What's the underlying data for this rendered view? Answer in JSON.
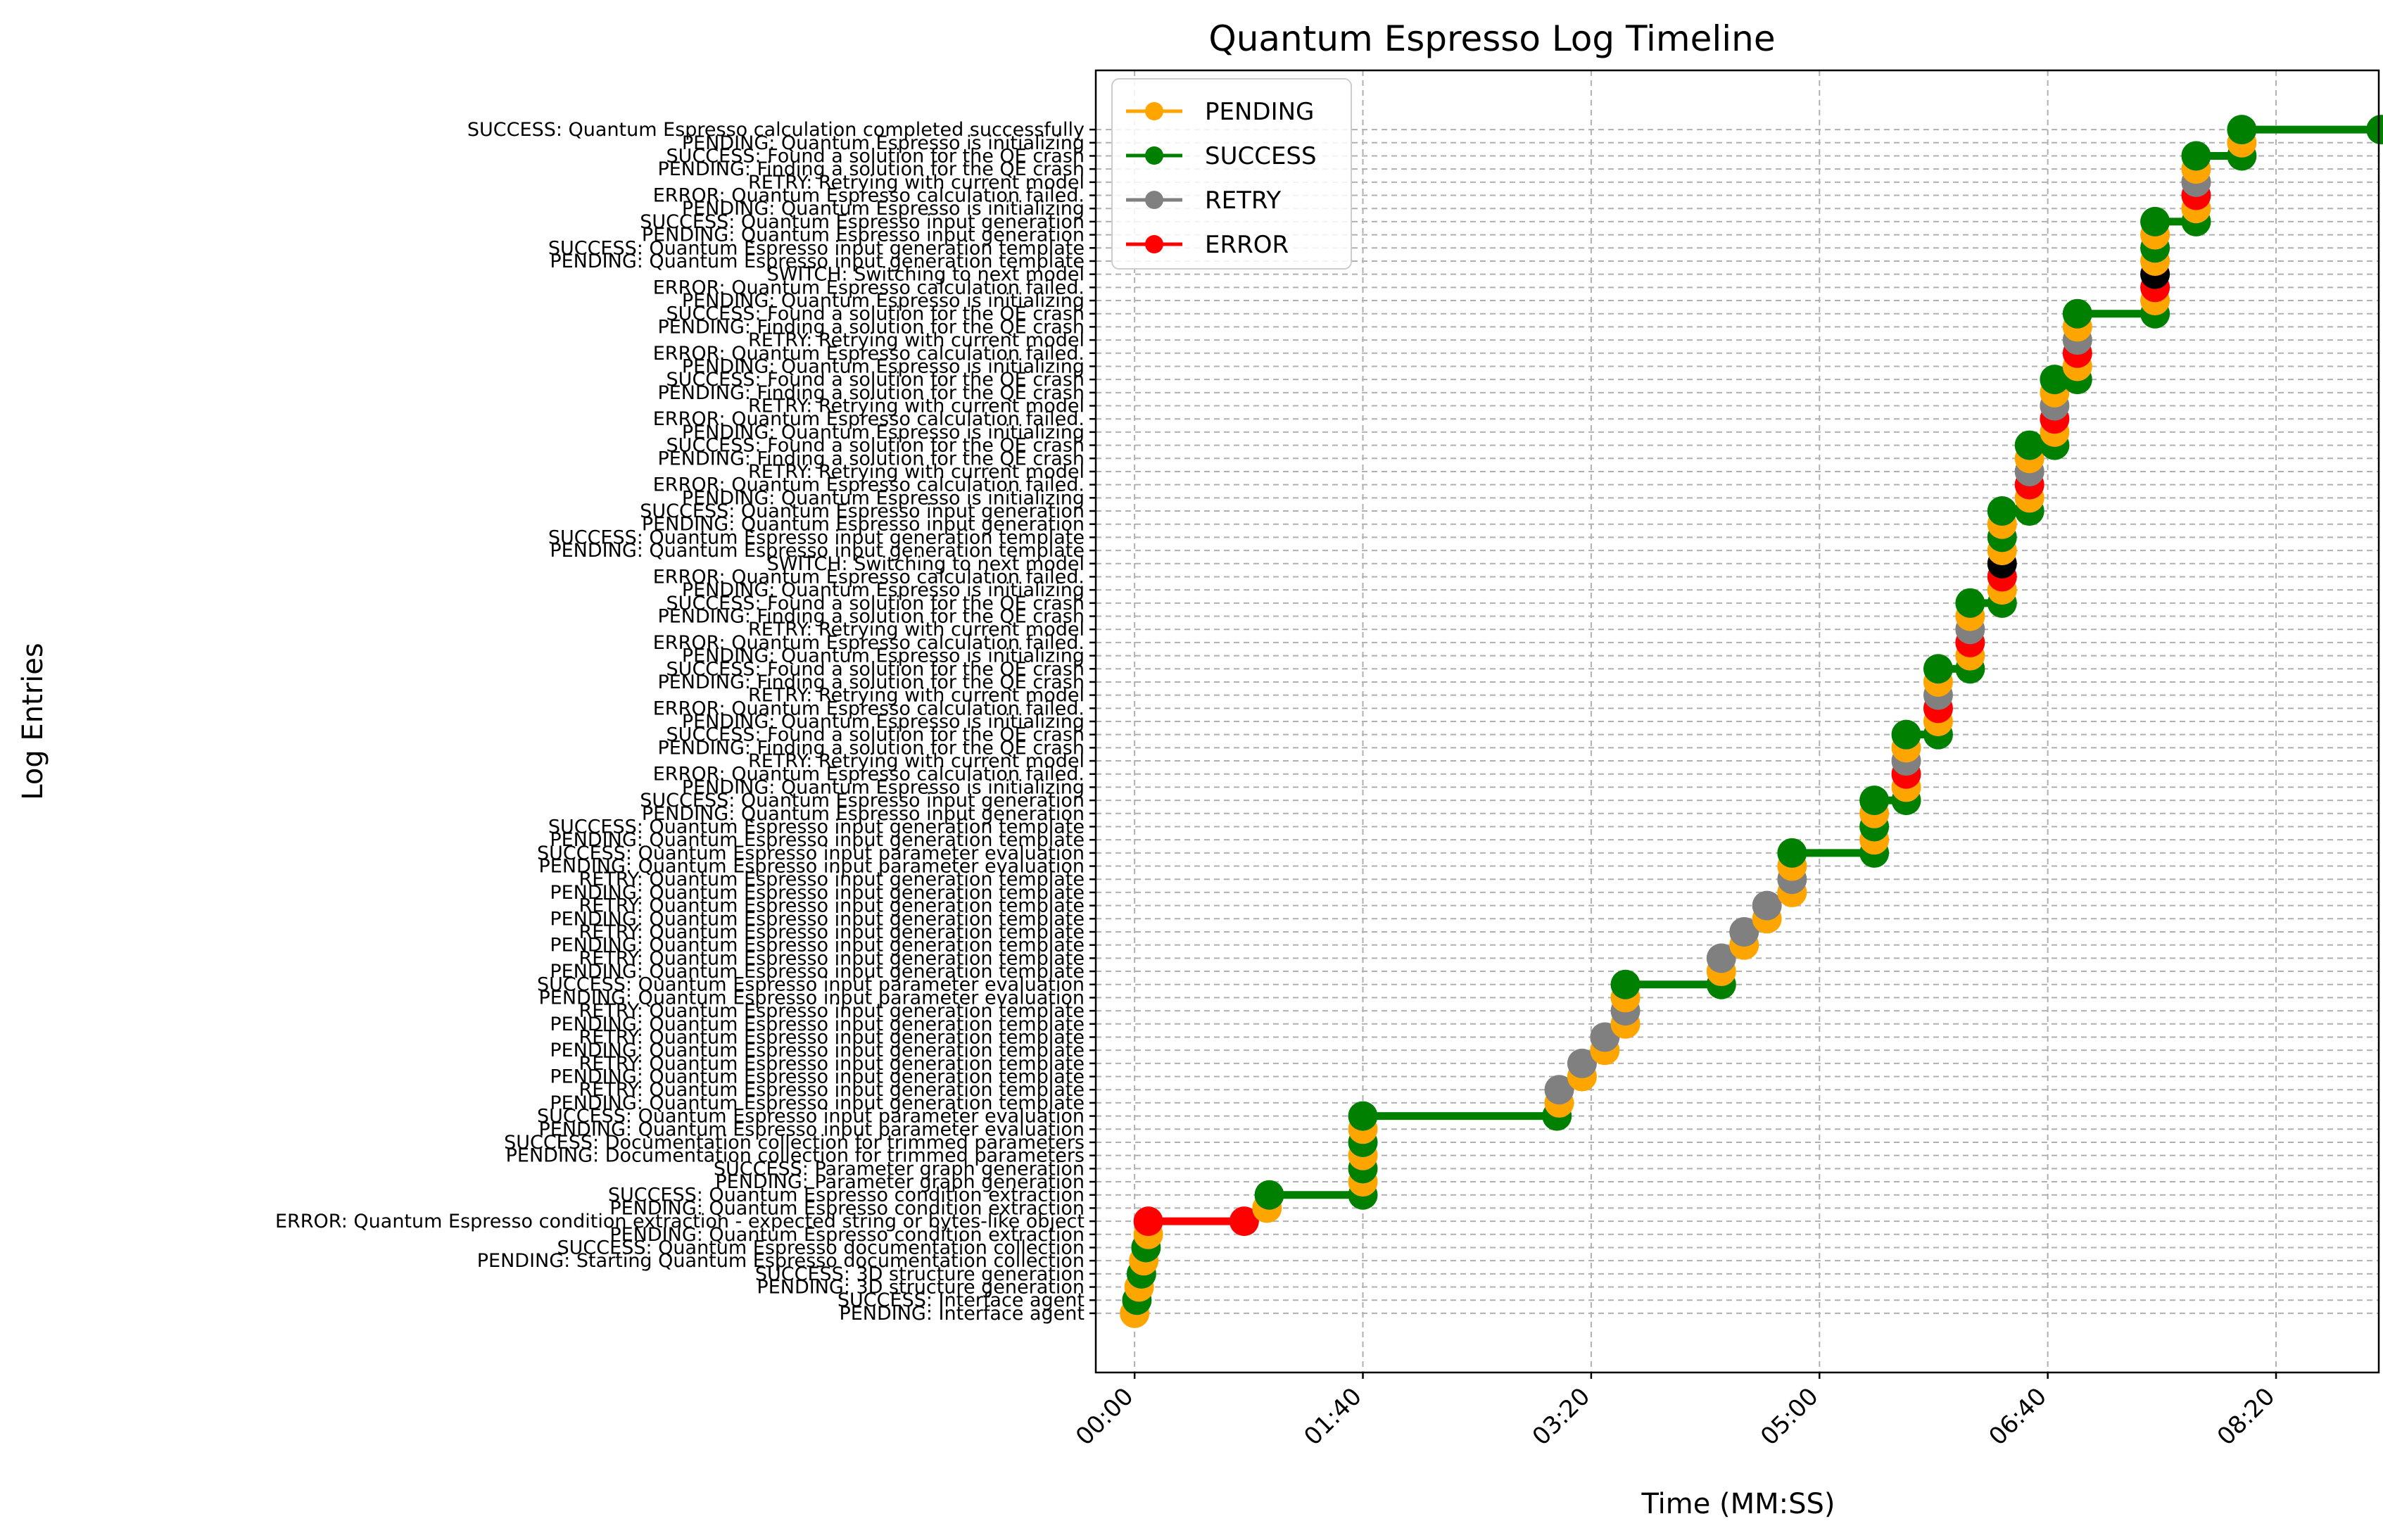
{
  "chart_data": {
    "type": "line",
    "title": "Quantum Espresso Log Timeline",
    "xlabel": "Time (MM:SS)",
    "ylabel": "Log Entries",
    "xlim": [
      -17,
      545
    ],
    "ylim": [
      -4.5,
      94.5
    ],
    "x_ticks": [
      {
        "value": 0,
        "label": "00:00"
      },
      {
        "value": 100,
        "label": "01:40"
      },
      {
        "value": 200,
        "label": "03:20"
      },
      {
        "value": 300,
        "label": "05:00"
      },
      {
        "value": 400,
        "label": "06:40"
      },
      {
        "value": 500,
        "label": "08:20"
      }
    ],
    "grid": true,
    "legend": {
      "location": "upper left",
      "entries": [
        {
          "label": "PENDING",
          "color": "#ffa500"
        },
        {
          "label": "SUCCESS",
          "color": "#008000"
        },
        {
          "label": "RETRY",
          "color": "#808080"
        },
        {
          "label": "ERROR",
          "color": "#ff0000"
        }
      ]
    },
    "status_colors": {
      "PENDING": "#ffa500",
      "SUCCESS": "#008000",
      "RETRY": "#808080",
      "ERROR": "#ff0000",
      "SWITCH": "#000000"
    },
    "x_unit": "seconds",
    "entries": [
      {
        "y": 0,
        "x": 0,
        "status": "PENDING",
        "label": "PENDING: Interface agent"
      },
      {
        "y": 1,
        "x": 1,
        "status": "SUCCESS",
        "label": "SUCCESS: Interface agent"
      },
      {
        "y": 2,
        "x": 2,
        "status": "PENDING",
        "label": "PENDING: 3D structure generation"
      },
      {
        "y": 3,
        "x": 3,
        "status": "SUCCESS",
        "label": "SUCCESS: 3D structure generation"
      },
      {
        "y": 4,
        "x": 4,
        "status": "PENDING",
        "label": "PENDING: Starting Quantum Espresso documentation collection"
      },
      {
        "y": 5,
        "x": 5,
        "status": "SUCCESS",
        "label": "SUCCESS: Quantum Espresso documentation collection"
      },
      {
        "y": 6,
        "x": 6,
        "status": "PENDING",
        "label": "PENDING: Quantum Espresso condition extraction"
      },
      {
        "y": 7,
        "x": 6,
        "status": "ERROR",
        "label": "ERROR: Quantum Espresso condition extraction - expected string or bytes-like object"
      },
      {
        "y": 7,
        "x": 48,
        "status": "ERROR",
        "label": "ERROR: Quantum Espresso condition extraction - expected string or bytes-like object"
      },
      {
        "y": 8,
        "x": 58,
        "status": "PENDING",
        "label": "PENDING: Quantum Espresso condition extraction"
      },
      {
        "y": 9,
        "x": 59,
        "status": "SUCCESS",
        "label": "SUCCESS: Quantum Espresso condition extraction"
      },
      {
        "y": 9,
        "x": 100,
        "status": "SUCCESS",
        "label": "SUCCESS: Quantum Espresso condition extraction"
      },
      {
        "y": 10,
        "x": 100,
        "status": "PENDING",
        "label": "PENDING: Parameter graph generation"
      },
      {
        "y": 11,
        "x": 100,
        "status": "SUCCESS",
        "label": "SUCCESS: Parameter graph generation"
      },
      {
        "y": 12,
        "x": 100,
        "status": "PENDING",
        "label": "PENDING: Documentation collection for trimmed parameters"
      },
      {
        "y": 13,
        "x": 100,
        "status": "SUCCESS",
        "label": "SUCCESS: Documentation collection for trimmed parameters"
      },
      {
        "y": 14,
        "x": 100,
        "status": "PENDING",
        "label": "PENDING: Quantum Espresso input parameter evaluation"
      },
      {
        "y": 15,
        "x": 100,
        "status": "SUCCESS",
        "label": "SUCCESS: Quantum Espresso input parameter evaluation"
      },
      {
        "y": 15,
        "x": 185,
        "status": "SUCCESS",
        "label": "SUCCESS: Quantum Espresso input parameter evaluation"
      },
      {
        "y": 16,
        "x": 186,
        "status": "PENDING",
        "label": "PENDING: Quantum Espresso input generation template"
      },
      {
        "y": 17,
        "x": 186,
        "status": "RETRY",
        "label": "RETRY: Quantum Espresso input generation template"
      },
      {
        "y": 18,
        "x": 196,
        "status": "PENDING",
        "label": "PENDING: Quantum Espresso input generation template"
      },
      {
        "y": 19,
        "x": 196,
        "status": "RETRY",
        "label": "RETRY: Quantum Espresso input generation template"
      },
      {
        "y": 20,
        "x": 206,
        "status": "PENDING",
        "label": "PENDING: Quantum Espresso input generation template"
      },
      {
        "y": 21,
        "x": 206,
        "status": "RETRY",
        "label": "RETRY: Quantum Espresso input generation template"
      },
      {
        "y": 22,
        "x": 215,
        "status": "PENDING",
        "label": "PENDING: Quantum Espresso input generation template"
      },
      {
        "y": 23,
        "x": 215,
        "status": "RETRY",
        "label": "RETRY: Quantum Espresso input generation template"
      },
      {
        "y": 24,
        "x": 215,
        "status": "PENDING",
        "label": "PENDING: Quantum Espresso input parameter evaluation"
      },
      {
        "y": 25,
        "x": 215,
        "status": "SUCCESS",
        "label": "SUCCESS: Quantum Espresso input parameter evaluation"
      },
      {
        "y": 25,
        "x": 257,
        "status": "SUCCESS",
        "label": "SUCCESS: Quantum Espresso input parameter evaluation"
      },
      {
        "y": 26,
        "x": 257,
        "status": "PENDING",
        "label": "PENDING: Quantum Espresso input generation template"
      },
      {
        "y": 27,
        "x": 257,
        "status": "RETRY",
        "label": "RETRY: Quantum Espresso input generation template"
      },
      {
        "y": 28,
        "x": 267,
        "status": "PENDING",
        "label": "PENDING: Quantum Espresso input generation template"
      },
      {
        "y": 29,
        "x": 267,
        "status": "RETRY",
        "label": "RETRY: Quantum Espresso input generation template"
      },
      {
        "y": 30,
        "x": 277,
        "status": "PENDING",
        "label": "PENDING: Quantum Espresso input generation template"
      },
      {
        "y": 31,
        "x": 277,
        "status": "RETRY",
        "label": "RETRY: Quantum Espresso input generation template"
      },
      {
        "y": 32,
        "x": 288,
        "status": "PENDING",
        "label": "PENDING: Quantum Espresso input generation template"
      },
      {
        "y": 33,
        "x": 288,
        "status": "RETRY",
        "label": "RETRY: Quantum Espresso input generation template"
      },
      {
        "y": 34,
        "x": 288,
        "status": "PENDING",
        "label": "PENDING: Quantum Espresso input parameter evaluation"
      },
      {
        "y": 35,
        "x": 288,
        "status": "SUCCESS",
        "label": "SUCCESS: Quantum Espresso input parameter evaluation"
      },
      {
        "y": 35,
        "x": 324,
        "status": "SUCCESS",
        "label": "SUCCESS: Quantum Espresso input parameter evaluation"
      },
      {
        "y": 36,
        "x": 324,
        "status": "PENDING",
        "label": "PENDING: Quantum Espresso input generation template"
      },
      {
        "y": 37,
        "x": 324,
        "status": "SUCCESS",
        "label": "SUCCESS: Quantum Espresso input generation template"
      },
      {
        "y": 38,
        "x": 324,
        "status": "PENDING",
        "label": "PENDING: Quantum Espresso input generation"
      },
      {
        "y": 39,
        "x": 324,
        "status": "SUCCESS",
        "label": "SUCCESS: Quantum Espresso input generation"
      },
      {
        "y": 39,
        "x": 338,
        "status": "SUCCESS",
        "label": "SUCCESS: Quantum Espresso input generation"
      },
      {
        "y": 40,
        "x": 338,
        "status": "PENDING",
        "label": "PENDING: Quantum Espresso is initializing"
      },
      {
        "y": 41,
        "x": 338,
        "status": "ERROR",
        "label": "ERROR: Quantum Espresso calculation failed."
      },
      {
        "y": 42,
        "x": 338,
        "status": "RETRY",
        "label": "RETRY: Retrying with current model"
      },
      {
        "y": 43,
        "x": 338,
        "status": "PENDING",
        "label": "PENDING: Finding a solution for the QE crash"
      },
      {
        "y": 44,
        "x": 338,
        "status": "SUCCESS",
        "label": "SUCCESS: Found a solution for the QE crash"
      },
      {
        "y": 44,
        "x": 352,
        "status": "SUCCESS",
        "label": "SUCCESS: Found a solution for the QE crash"
      },
      {
        "y": 45,
        "x": 352,
        "status": "PENDING",
        "label": "PENDING: Quantum Espresso is initializing"
      },
      {
        "y": 46,
        "x": 352,
        "status": "ERROR",
        "label": "ERROR: Quantum Espresso calculation failed."
      },
      {
        "y": 47,
        "x": 352,
        "status": "RETRY",
        "label": "RETRY: Retrying with current model"
      },
      {
        "y": 48,
        "x": 352,
        "status": "PENDING",
        "label": "PENDING: Finding a solution for the QE crash"
      },
      {
        "y": 49,
        "x": 352,
        "status": "SUCCESS",
        "label": "SUCCESS: Found a solution for the QE crash"
      },
      {
        "y": 49,
        "x": 366,
        "status": "SUCCESS",
        "label": "SUCCESS: Found a solution for the QE crash"
      },
      {
        "y": 50,
        "x": 366,
        "status": "PENDING",
        "label": "PENDING: Quantum Espresso is initializing"
      },
      {
        "y": 51,
        "x": 366,
        "status": "ERROR",
        "label": "ERROR: Quantum Espresso calculation failed."
      },
      {
        "y": 52,
        "x": 366,
        "status": "RETRY",
        "label": "RETRY: Retrying with current model"
      },
      {
        "y": 53,
        "x": 366,
        "status": "PENDING",
        "label": "PENDING: Finding a solution for the QE crash"
      },
      {
        "y": 54,
        "x": 366,
        "status": "SUCCESS",
        "label": "SUCCESS: Found a solution for the QE crash"
      },
      {
        "y": 54,
        "x": 380,
        "status": "SUCCESS",
        "label": "SUCCESS: Found a solution for the QE crash"
      },
      {
        "y": 55,
        "x": 380,
        "status": "PENDING",
        "label": "PENDING: Quantum Espresso is initializing"
      },
      {
        "y": 56,
        "x": 380,
        "status": "ERROR",
        "label": "ERROR: Quantum Espresso calculation failed."
      },
      {
        "y": 57,
        "x": 380,
        "status": "SWITCH",
        "label": "SWITCH: Switching to next model"
      },
      {
        "y": 58,
        "x": 380,
        "status": "PENDING",
        "label": "PENDING: Quantum Espresso input generation template"
      },
      {
        "y": 59,
        "x": 380,
        "status": "SUCCESS",
        "label": "SUCCESS: Quantum Espresso input generation template"
      },
      {
        "y": 60,
        "x": 380,
        "status": "PENDING",
        "label": "PENDING: Quantum Espresso input generation"
      },
      {
        "y": 61,
        "x": 380,
        "status": "SUCCESS",
        "label": "SUCCESS: Quantum Espresso input generation"
      },
      {
        "y": 61,
        "x": 392,
        "status": "SUCCESS",
        "label": "SUCCESS: Quantum Espresso input generation"
      },
      {
        "y": 62,
        "x": 392,
        "status": "PENDING",
        "label": "PENDING: Quantum Espresso is initializing"
      },
      {
        "y": 63,
        "x": 392,
        "status": "ERROR",
        "label": "ERROR: Quantum Espresso calculation failed."
      },
      {
        "y": 64,
        "x": 392,
        "status": "RETRY",
        "label": "RETRY: Retrying with current model"
      },
      {
        "y": 65,
        "x": 392,
        "status": "PENDING",
        "label": "PENDING: Finding a solution for the QE crash"
      },
      {
        "y": 66,
        "x": 392,
        "status": "SUCCESS",
        "label": "SUCCESS: Found a solution for the QE crash"
      },
      {
        "y": 66,
        "x": 403,
        "status": "SUCCESS",
        "label": "SUCCESS: Found a solution for the QE crash"
      },
      {
        "y": 67,
        "x": 403,
        "status": "PENDING",
        "label": "PENDING: Quantum Espresso is initializing"
      },
      {
        "y": 68,
        "x": 403,
        "status": "ERROR",
        "label": "ERROR: Quantum Espresso calculation failed."
      },
      {
        "y": 69,
        "x": 403,
        "status": "RETRY",
        "label": "RETRY: Retrying with current model"
      },
      {
        "y": 70,
        "x": 403,
        "status": "PENDING",
        "label": "PENDING: Finding a solution for the QE crash"
      },
      {
        "y": 71,
        "x": 403,
        "status": "SUCCESS",
        "label": "SUCCESS: Found a solution for the QE crash"
      },
      {
        "y": 71,
        "x": 413,
        "status": "SUCCESS",
        "label": "SUCCESS: Found a solution for the QE crash"
      },
      {
        "y": 72,
        "x": 413,
        "status": "PENDING",
        "label": "PENDING: Quantum Espresso is initializing"
      },
      {
        "y": 73,
        "x": 413,
        "status": "ERROR",
        "label": "ERROR: Quantum Espresso calculation failed."
      },
      {
        "y": 74,
        "x": 413,
        "status": "RETRY",
        "label": "RETRY: Retrying with current model"
      },
      {
        "y": 75,
        "x": 413,
        "status": "PENDING",
        "label": "PENDING: Finding a solution for the QE crash"
      },
      {
        "y": 76,
        "x": 413,
        "status": "SUCCESS",
        "label": "SUCCESS: Found a solution for the QE crash"
      },
      {
        "y": 76,
        "x": 447,
        "status": "SUCCESS",
        "label": "SUCCESS: Found a solution for the QE crash"
      },
      {
        "y": 77,
        "x": 447,
        "status": "PENDING",
        "label": "PENDING: Quantum Espresso is initializing"
      },
      {
        "y": 78,
        "x": 447,
        "status": "ERROR",
        "label": "ERROR: Quantum Espresso calculation failed."
      },
      {
        "y": 79,
        "x": 447,
        "status": "SWITCH",
        "label": "SWITCH: Switching to next model"
      },
      {
        "y": 80,
        "x": 447,
        "status": "PENDING",
        "label": "PENDING: Quantum Espresso input generation template"
      },
      {
        "y": 81,
        "x": 447,
        "status": "SUCCESS",
        "label": "SUCCESS: Quantum Espresso input generation template"
      },
      {
        "y": 82,
        "x": 447,
        "status": "PENDING",
        "label": "PENDING: Quantum Espresso input generation"
      },
      {
        "y": 83,
        "x": 447,
        "status": "SUCCESS",
        "label": "SUCCESS: Quantum Espresso input generation"
      },
      {
        "y": 83,
        "x": 465,
        "status": "SUCCESS",
        "label": "SUCCESS: Quantum Espresso input generation"
      },
      {
        "y": 84,
        "x": 465,
        "status": "PENDING",
        "label": "PENDING: Quantum Espresso is initializing"
      },
      {
        "y": 85,
        "x": 465,
        "status": "ERROR",
        "label": "ERROR: Quantum Espresso calculation failed."
      },
      {
        "y": 86,
        "x": 465,
        "status": "RETRY",
        "label": "RETRY: Retrying with current model"
      },
      {
        "y": 87,
        "x": 465,
        "status": "PENDING",
        "label": "PENDING: Finding a solution for the QE crash"
      },
      {
        "y": 88,
        "x": 465,
        "status": "SUCCESS",
        "label": "SUCCESS: Found a solution for the QE crash"
      },
      {
        "y": 88,
        "x": 485,
        "status": "SUCCESS",
        "label": "SUCCESS: Found a solution for the QE crash"
      },
      {
        "y": 89,
        "x": 485,
        "status": "PENDING",
        "label": "PENDING: Quantum Espresso is initializing"
      },
      {
        "y": 90,
        "x": 485,
        "status": "SUCCESS",
        "label": "SUCCESS: Quantum Espresso calculation completed successfully"
      },
      {
        "y": 90,
        "x": 546,
        "status": "SUCCESS",
        "label": "SUCCESS: Quantum Espresso calculation completed successfully"
      }
    ]
  }
}
